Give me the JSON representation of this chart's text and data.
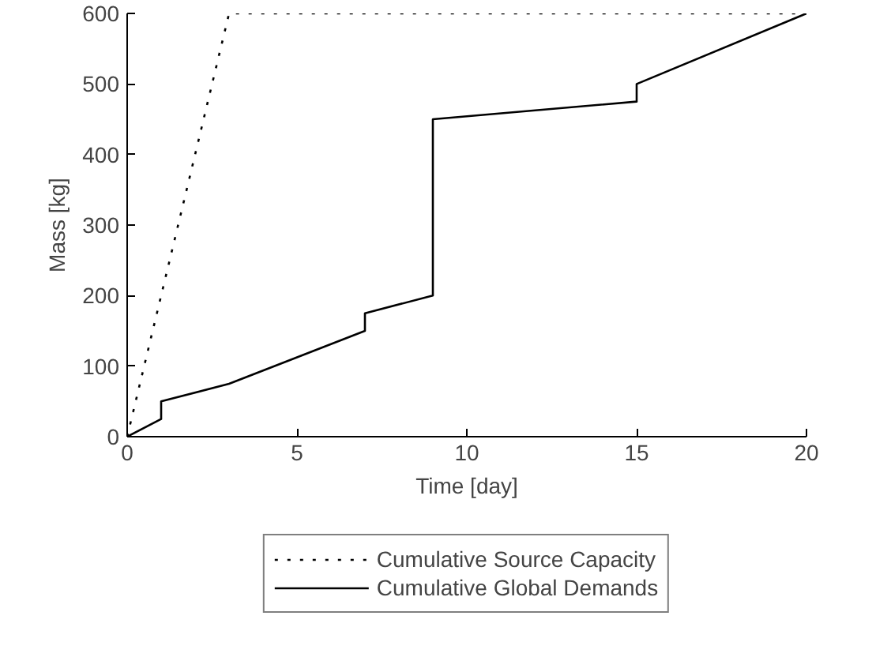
{
  "chart_data": {
    "type": "line",
    "xlabel": "Time [day]",
    "ylabel": "Mass [kg]",
    "xlim": [
      0,
      20
    ],
    "ylim": [
      0,
      600
    ],
    "xticks": [
      0,
      5,
      10,
      15,
      20
    ],
    "yticks": [
      0,
      100,
      200,
      300,
      400,
      500,
      600
    ],
    "grid": false,
    "legend": "bottom",
    "series": [
      {
        "name": "Cumulative Source Capacity",
        "color": "#000000",
        "line_style": "dotted",
        "x": [
          0,
          3,
          20
        ],
        "values": [
          0,
          600,
          600
        ]
      },
      {
        "name": "Cumulative Global Demands",
        "color": "#000000",
        "line_style": "solid",
        "x": [
          0,
          1,
          1,
          3,
          7,
          7,
          9,
          9,
          15,
          15,
          20
        ],
        "values": [
          0,
          25,
          50,
          75,
          150,
          175,
          200,
          450,
          475,
          500,
          600
        ]
      }
    ]
  }
}
